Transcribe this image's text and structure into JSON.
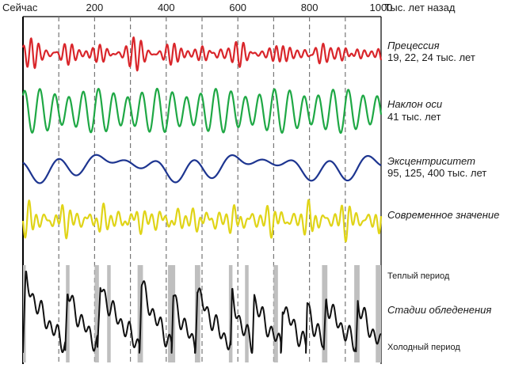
{
  "chart_data": {
    "type": "line",
    "title": "",
    "x_unit_label": "Тыс. лет назад",
    "x_start_label": "Сейчас",
    "xlim": [
      0,
      1000
    ],
    "x_ticks": [
      200,
      400,
      600,
      800,
      1000
    ],
    "gridlines_every": 100,
    "series": [
      {
        "name": "precession",
        "label": "Прецессия",
        "sublabel": "19, 22, 24 тыс. лет",
        "color": "#d9262b",
        "periods": [
          19,
          22,
          24
        ],
        "amplitudes": [
          0.45,
          0.35,
          0.3
        ]
      },
      {
        "name": "obliquity",
        "label": "Наклон оси",
        "sublabel": "41 тыс. лет",
        "color": "#1fa845",
        "periods": [
          41,
          54
        ],
        "amplitudes": [
          0.85,
          0.2
        ]
      },
      {
        "name": "eccentricity",
        "label": "Эксцентриситет",
        "sublabel": "95, 125, 400 тыс. лет",
        "color": "#1d3590",
        "periods": [
          95,
          125,
          400
        ],
        "amplitudes": [
          0.35,
          0.3,
          0.35
        ]
      },
      {
        "name": "combined",
        "label": "Современное значение",
        "sublabel": "",
        "color": "#e0d418",
        "periods": [
          19,
          23,
          41
        ],
        "amplitudes": [
          0.4,
          0.35,
          0.3
        ]
      }
    ],
    "glaciation": {
      "label": "Стадии обледенения",
      "warm_label": "Теплый период",
      "cold_label": "Холодный период",
      "color": "#111111",
      "warm_periods": [
        [
          0,
          8
        ],
        [
          120,
          130
        ],
        [
          200,
          212
        ],
        [
          235,
          245
        ],
        [
          320,
          335
        ],
        [
          405,
          425
        ],
        [
          480,
          495
        ],
        [
          575,
          585
        ],
        [
          620,
          630
        ],
        [
          700,
          712
        ],
        [
          835,
          850
        ],
        [
          925,
          940
        ],
        [
          985,
          1000
        ]
      ],
      "cycles": [
        {
          "start": 0,
          "end": 118,
          "peak": 0.95
        },
        {
          "start": 118,
          "end": 208,
          "peak": 0.78
        },
        {
          "start": 208,
          "end": 325,
          "peak": 0.86
        },
        {
          "start": 325,
          "end": 415,
          "peak": 0.9
        },
        {
          "start": 415,
          "end": 480,
          "peak": 0.72
        },
        {
          "start": 480,
          "end": 580,
          "peak": 0.8
        },
        {
          "start": 580,
          "end": 640,
          "peak": 0.7
        },
        {
          "start": 640,
          "end": 720,
          "peak": 0.68
        },
        {
          "start": 720,
          "end": 790,
          "peak": 0.62
        },
        {
          "start": 790,
          "end": 840,
          "peak": 0.6
        },
        {
          "start": 840,
          "end": 930,
          "peak": 0.66
        },
        {
          "start": 930,
          "end": 1000,
          "peak": 0.62
        }
      ]
    }
  }
}
